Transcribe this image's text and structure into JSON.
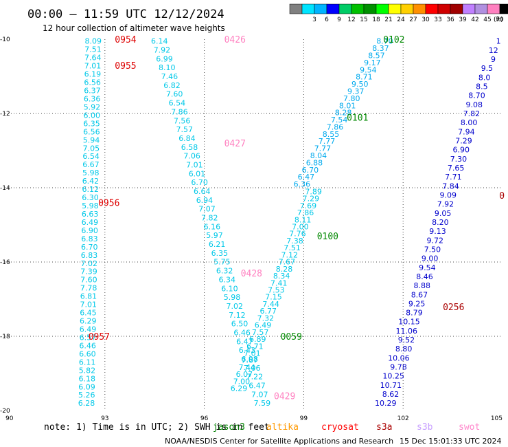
{
  "header": {
    "title": "00:00 – 11:59 UTC 12/12/2024",
    "subtitle": "12 hour collection of altimeter wave heights"
  },
  "legend": {
    "unit": "(ft)",
    "stops": [
      {
        "label": "",
        "color": "#808080"
      },
      {
        "label": "3",
        "color": "#00e4ff"
      },
      {
        "label": "6",
        "color": "#00b4ff"
      },
      {
        "label": "9",
        "color": "#0000ff"
      },
      {
        "label": "12",
        "color": "#00cc66"
      },
      {
        "label": "15",
        "color": "#00c000"
      },
      {
        "label": "18",
        "color": "#009000"
      },
      {
        "label": "21",
        "color": "#00ff00"
      },
      {
        "label": "24",
        "color": "#ffff00"
      },
      {
        "label": "27",
        "color": "#ffd000"
      },
      {
        "label": "30",
        "color": "#ff9000"
      },
      {
        "label": "33",
        "color": "#ff0000"
      },
      {
        "label": "36",
        "color": "#d00000"
      },
      {
        "label": "39",
        "color": "#a00000"
      },
      {
        "label": "42",
        "color": "#c080ff"
      },
      {
        "label": "45",
        "color": "#b090e0"
      },
      {
        "label": "70",
        "color": "#ff80c0"
      },
      {
        "label": "",
        "color": "#000000"
      }
    ]
  },
  "footer": {
    "note": "note: 1) Time is in UTC; 2) SWH is in feet",
    "credit": "NOAA/NESDIS Center for Satellite Applications and Research",
    "timestamp": "15 Dec 15:01:33 UTC 2024",
    "satellites": [
      {
        "name": "jason3",
        "color": "#008000"
      },
      {
        "name": "altika",
        "color": "#ff9900"
      },
      {
        "name": "cryosat",
        "color": "#ff0000"
      },
      {
        "name": "s3a",
        "color": "#aa0000"
      },
      {
        "name": "s3b",
        "color": "#c8a0ff"
      },
      {
        "name": "swot",
        "color": "#ff88cc"
      }
    ]
  },
  "chart_data": {
    "type": "scatter",
    "xlim": [
      90,
      105
    ],
    "ylim": [
      -20,
      -10
    ],
    "x_ticks": [
      90,
      93,
      96,
      99,
      102,
      105
    ],
    "y_ticks": [
      -10,
      -12,
      -14,
      -16,
      -18,
      -20
    ],
    "x_tick_labels": [
      "90",
      "93",
      "96",
      "99",
      "102",
      "105"
    ],
    "y_tick_labels": [
      "-10",
      "-12",
      "-14",
      "-16",
      "-18",
      "-20"
    ],
    "grid": "dotted",
    "colors": {
      "light_cyan": "#00c8e8",
      "mid_blue": "#00aaee",
      "dark_blue": "#0000cc"
    },
    "tracks": [
      {
        "values": [
          "8.09",
          "7.51",
          "7.64",
          "7.01",
          "6.19",
          "6.56",
          "6.37",
          "6.36",
          "5.92",
          "6.00",
          "6.35",
          "6.56",
          "5.94",
          "7.05",
          "6.54",
          "6.67",
          "5.98",
          "6.42",
          "6.12",
          "6.30",
          "5.98",
          "6.63",
          "6.49",
          "6.90",
          "6.83",
          "6.70",
          "6.83",
          "7.02",
          "7.39",
          "7.60",
          "7.78",
          "6.81",
          "7.01",
          "6.45",
          "6.29",
          "6.49",
          "6.57",
          "6.46",
          "6.60",
          "6.11",
          "5.82",
          "6.18",
          "6.09",
          "5.26",
          "6.28"
        ],
        "lon_start": 92.9,
        "lon_end": 92.7,
        "lat_start": -10.05,
        "lat_end": -19.8,
        "color": "#00c8e8",
        "anchor": "end"
      },
      {
        "values": [
          "6.14",
          "7.92",
          "6.99",
          "8.10",
          "7.46",
          "6.82",
          "7.60",
          "6.54",
          "7.86",
          "7.56",
          "7.57",
          "6.84",
          "6.58",
          "7.06",
          "7.01",
          "6.01",
          "6.70",
          "6.64",
          "6.94",
          "7.07",
          "7.82",
          "6.16",
          "5.97",
          "6.21",
          "6.35",
          "5.75",
          "6.32",
          "6.34",
          "6.10",
          "5.98",
          "7.02",
          "7.12",
          "6.50",
          "6.46",
          "6.47",
          "6.43",
          "6.98",
          "7.06",
          "7.22",
          "6.47",
          "7.07",
          "7.59"
        ],
        "lon_start": 94.9,
        "lon_end": 98.0,
        "lat_start": -10.05,
        "lat_end": -19.8,
        "color": "#00c8e8",
        "anchor": "end"
      },
      {
        "values": [
          "7.89",
          "7.29",
          "7.69",
          "7.86",
          "8.11",
          "7.00",
          "7.76",
          "7.38",
          "7.51",
          "7.12",
          "7.67",
          "8.28",
          "8.34",
          "7.41",
          "7.53",
          "7.15",
          "7.44",
          "6.77",
          "7.32",
          "6.49",
          "7.57",
          "6.89",
          "6.71",
          "7.01",
          "7.67",
          "7.44",
          "6.07",
          "7.00",
          "6.29"
        ],
        "lon_start": 99.55,
        "lon_end": 97.3,
        "lat_start": -14.1,
        "lat_end": -19.4,
        "color": "#00c8e8",
        "anchor": "end"
      },
      {
        "values": [
          "8.70",
          "8.37",
          "8.57",
          "9.17",
          "9.54",
          "8.71",
          "9.50",
          "9.37",
          "7.80",
          "8.01",
          "8.28",
          "7.54",
          "7.86",
          "8.55",
          "7.77",
          "7.77",
          "8.04",
          "6.88",
          "6.70",
          "6.47",
          "6.36"
        ],
        "lon_start": 101.7,
        "lon_end": 99.2,
        "lat_start": -10.05,
        "lat_end": -13.9,
        "color": "#00aaee",
        "anchor": "end"
      },
      {
        "values": [
          "1",
          "12",
          "9",
          "9.5",
          "8.0",
          "8.5",
          "8.70",
          "9.08",
          "7.82",
          "8.00",
          "7.94",
          "7.29",
          "6.90",
          "7.30",
          "7.65",
          "7.71",
          "7.84",
          "9.09",
          "7.92",
          "9.05",
          "8.20",
          "9.13",
          "9.72",
          "7.50",
          "9.00",
          "9.54",
          "8.46",
          "8.88",
          "8.67",
          "9.25",
          "8.79",
          "10.15",
          "11.06",
          "9.52",
          "8.80",
          "10.06",
          "9.78",
          "10.25",
          "10.71",
          "8.62",
          "10.29"
        ],
        "lon_start": 104.95,
        "lon_end": 101.8,
        "lat_start": -10.05,
        "lat_end": -19.8,
        "color": "#0000cc",
        "anchor": "end"
      }
    ],
    "pass_times": [
      {
        "text": "0954",
        "lon": 93.3,
        "lat": -10.0,
        "color": "#dd0000"
      },
      {
        "text": "0426",
        "lon": 96.6,
        "lat": -10.0,
        "color": "#ff80c0"
      },
      {
        "text": "0955",
        "lon": 93.3,
        "lat": -10.7,
        "color": "#dd0000"
      },
      {
        "text": "0102",
        "lon": 101.4,
        "lat": -10.0,
        "color": "#008800"
      },
      {
        "text": "0101",
        "lon": 100.3,
        "lat": -12.1,
        "color": "#008800"
      },
      {
        "text": "0427",
        "lon": 96.6,
        "lat": -12.8,
        "color": "#ff80c0"
      },
      {
        "text": "0956",
        "lon": 92.8,
        "lat": -14.4,
        "color": "#dd0000"
      },
      {
        "text": "0100",
        "lon": 99.4,
        "lat": -15.3,
        "color": "#008800"
      },
      {
        "text": "0428",
        "lon": 97.1,
        "lat": -16.3,
        "color": "#ff80c0"
      },
      {
        "text": "0256",
        "lon": 103.2,
        "lat": -17.2,
        "color": "#aa0000"
      },
      {
        "text": "0957",
        "lon": 92.5,
        "lat": -18.0,
        "color": "#dd0000"
      },
      {
        "text": "0059",
        "lon": 98.3,
        "lat": -18.0,
        "color": "#008800"
      },
      {
        "text": "0429",
        "lon": 98.1,
        "lat": -19.6,
        "color": "#ff80c0"
      },
      {
        "text": "0",
        "lon": 104.9,
        "lat": -14.2,
        "color": "#aa0000"
      }
    ]
  }
}
